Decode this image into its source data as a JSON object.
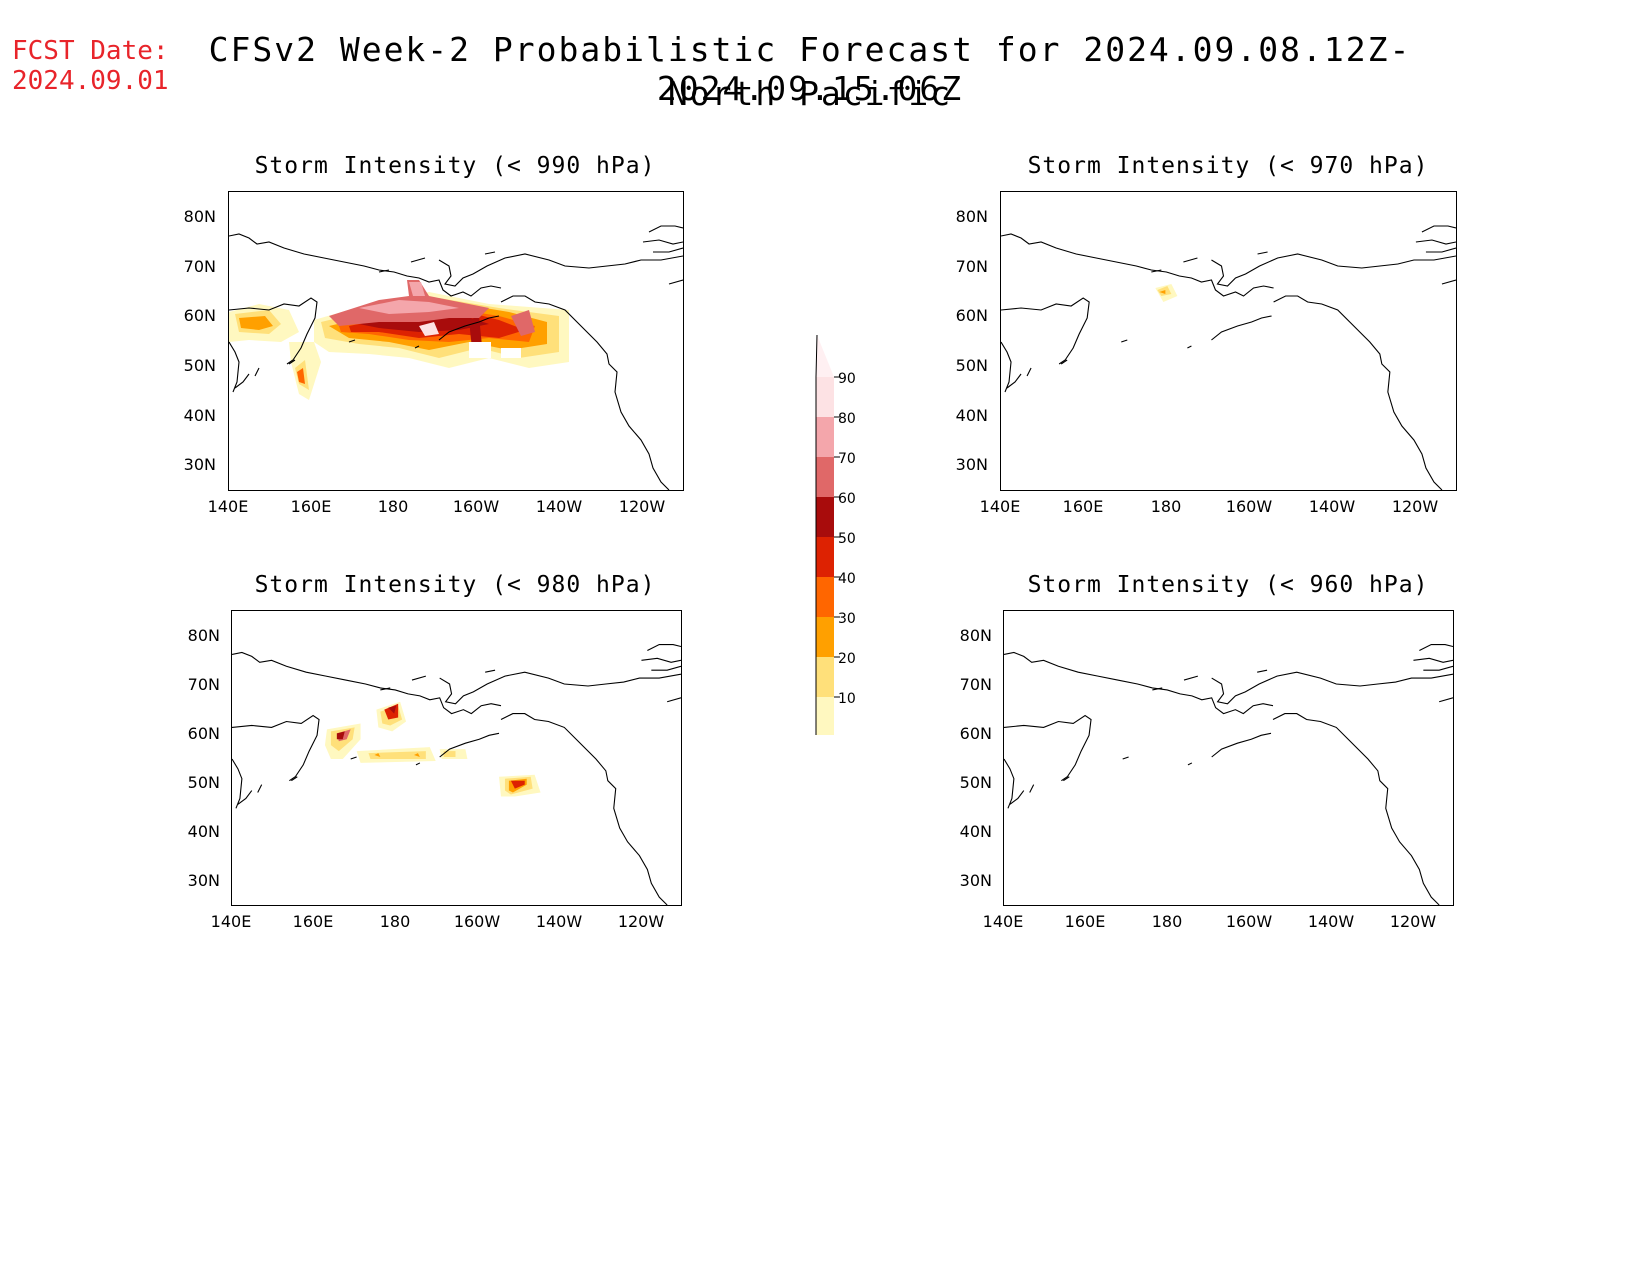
{
  "header": {
    "fcst_label": "FCST Date:",
    "fcst_date": "2024.09.01",
    "title_line1": "CFSv2 Week-2 Probabilistic Forecast for 2024.09.08.12Z-2024.09.15.06Z",
    "title_line2": "North Pacific"
  },
  "axes": {
    "lat_ticks": [
      "80N",
      "70N",
      "60N",
      "50N",
      "40N",
      "30N"
    ],
    "lon_ticks": [
      "140E",
      "160E",
      "180",
      "160W",
      "140W",
      "120W"
    ]
  },
  "panels": [
    {
      "title": "Storm Intensity (< 990 hPa)"
    },
    {
      "title": "Storm Intensity (< 970 hPa)"
    },
    {
      "title": "Storm Intensity (< 980 hPa)"
    },
    {
      "title": "Storm Intensity (< 960 hPa)"
    }
  ],
  "colorbar": {
    "labels": [
      "90",
      "80",
      "70",
      "60",
      "50",
      "40",
      "30",
      "20",
      "10"
    ],
    "colors": [
      "#fde2e4",
      "#f4a6ab",
      "#e06868",
      "#a80c0c",
      "#dd2202",
      "#ff6600",
      "#ffa000",
      "#ffe07a",
      "#fff8c0"
    ]
  }
}
